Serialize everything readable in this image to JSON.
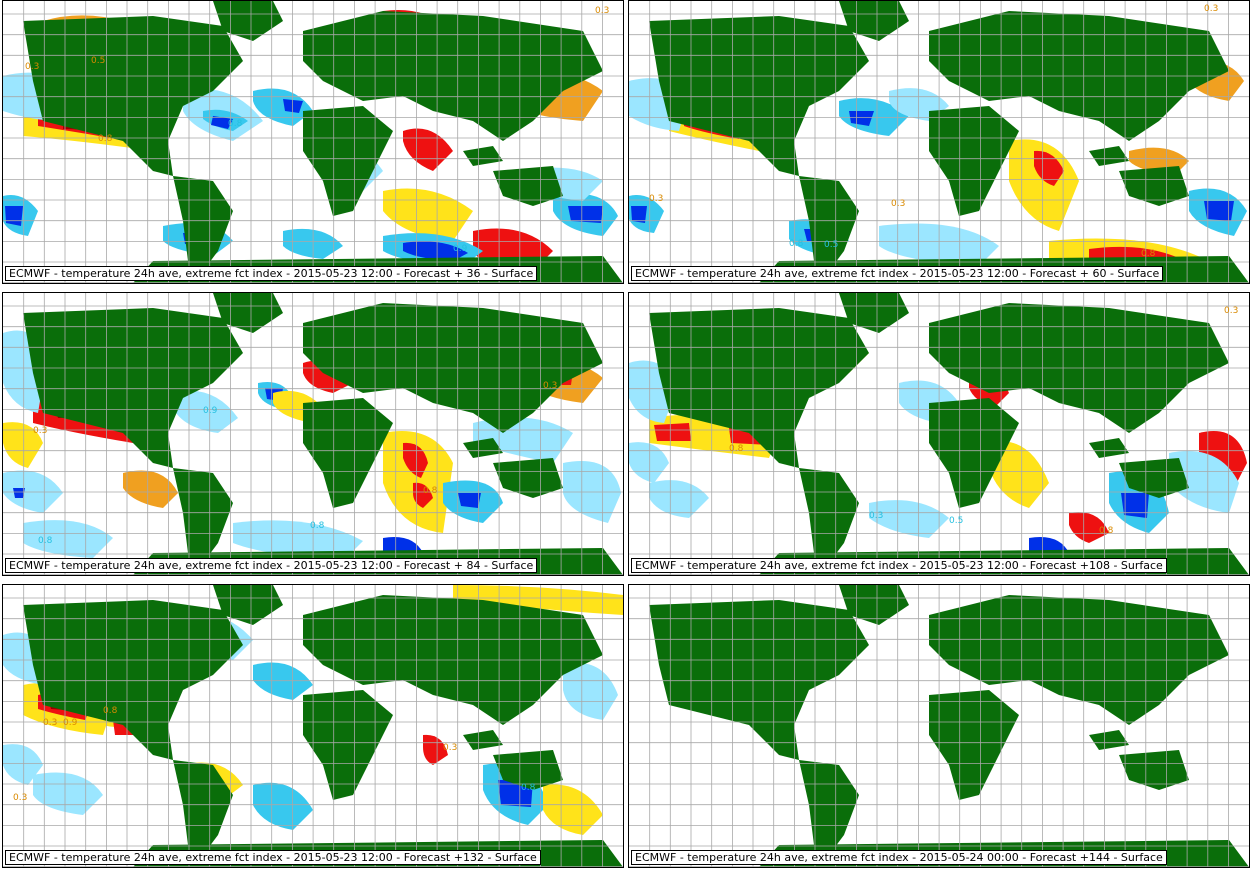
{
  "title": "ECMWF - temperature 24h ave, extreme fct index",
  "colors": {
    "land": "#0a6e0a",
    "grid": "#a8a8a8",
    "hot_light": "#ffe31a",
    "hot_orange": "#f0a020",
    "hot_strong": "#ee1111",
    "hot_extreme": "#9a0000",
    "cold_light": "#9be6ff",
    "cold_mid": "#38c8ee",
    "cold_strong": "#0030e8",
    "cold_extreme": "#00108a",
    "contour_warm": "#d98a00",
    "contour_cold": "#26c0e0"
  },
  "contour_labels": [
    "0.3",
    "0.5",
    "0.8",
    "0.9"
  ],
  "panels": [
    {
      "caption": "ECMWF - temperature 24h ave, extreme fct index - 2015-05-23 12:00 - Forecast + 36 - Surface"
    },
    {
      "caption": "ECMWF - temperature 24h ave, extreme fct index - 2015-05-23 12:00 - Forecast + 60 - Surface"
    },
    {
      "caption": "ECMWF - temperature 24h ave, extreme fct index - 2015-05-23 12:00 - Forecast + 84 - Surface"
    },
    {
      "caption": "ECMWF - temperature 24h ave, extreme fct index - 2015-05-23 12:00 - Forecast +108 - Surface"
    },
    {
      "caption": "ECMWF - temperature 24h ave, extreme fct index - 2015-05-23 12:00 - Forecast +132 - Surface"
    },
    {
      "caption": "ECMWF - temperature 24h ave, extreme fct index - 2015-05-24 00:00 - Forecast +144 - Surface"
    }
  ]
}
